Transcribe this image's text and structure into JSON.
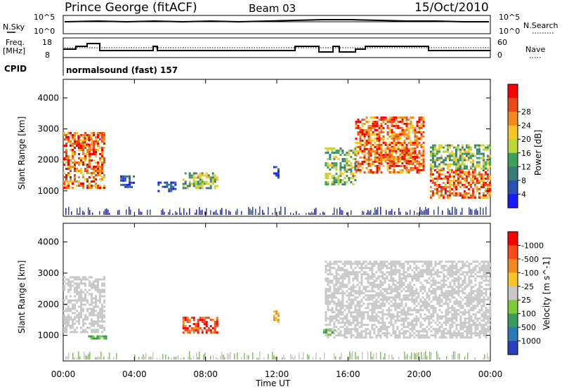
{
  "header": {
    "station": "Prince George (fitACF)",
    "beam": "Beam 03",
    "date": "15/Oct/2010"
  },
  "panels": {
    "nsky_label": "N.Sky",
    "nsearch_label": "N.Search",
    "freq_label_line1": "Freq.",
    "freq_label_line2": "[MHz]",
    "nave_label": "Nave",
    "cpid_label": "CPID",
    "cpid_value": "normalsound (fast) 157",
    "noise_ticks": [
      "10^5",
      "10^0"
    ],
    "freq_ticks": [
      "18",
      "8"
    ],
    "nave_ticks": [
      "60",
      "0"
    ]
  },
  "chart_data": [
    {
      "type": "heatmap",
      "title": "",
      "xlabel": "Time UT",
      "ylabel": "Slant Range [km]",
      "x_ticks": [
        "00:00",
        "04:00",
        "08:00",
        "12:00",
        "16:00",
        "20:00",
        "00:00"
      ],
      "y_ticks": [
        1000,
        2000,
        3000,
        4000
      ],
      "xlim_hours": [
        0,
        24
      ],
      "ylim_km": [
        180,
        4600
      ],
      "colorbar": {
        "label": "Power [dB]",
        "ticks": [
          4,
          8,
          12,
          16,
          20,
          24,
          28
        ],
        "colors": [
          "#1a1aff",
          "#2a4fb5",
          "#3a7a7a",
          "#3aa05a",
          "#b9d63a",
          "#f5c52a",
          "#f08a1e",
          "#e84a1a",
          "#ff0000"
        ]
      },
      "echo_regions": [
        {
          "t0": 0.0,
          "t1": 2.3,
          "r0": 1100,
          "r1": 2900,
          "level": "high"
        },
        {
          "t0": 0.8,
          "t1": 1.6,
          "r0": 2500,
          "r1": 2800,
          "level": "high"
        },
        {
          "t0": 3.2,
          "t1": 4.0,
          "r0": 1100,
          "r1": 1500,
          "level": "low"
        },
        {
          "t0": 5.3,
          "t1": 6.3,
          "r0": 1000,
          "r1": 1300,
          "level": "low"
        },
        {
          "t0": 6.7,
          "t1": 8.6,
          "r0": 1100,
          "r1": 1600,
          "level": "mid"
        },
        {
          "t0": 11.8,
          "t1": 12.1,
          "r0": 1400,
          "r1": 1800,
          "level": "low"
        },
        {
          "t0": 14.7,
          "t1": 16.4,
          "r0": 1200,
          "r1": 2400,
          "level": "mid"
        },
        {
          "t0": 16.4,
          "t1": 20.3,
          "r0": 1600,
          "r1": 3400,
          "level": "high"
        },
        {
          "t0": 17.7,
          "t1": 19.9,
          "r0": 1900,
          "r1": 2400,
          "level": "high"
        },
        {
          "t0": 20.6,
          "t1": 24.0,
          "r0": 800,
          "r1": 1700,
          "level": "high"
        },
        {
          "t0": 20.6,
          "t1": 24.0,
          "r0": 1700,
          "r1": 2500,
          "level": "mid"
        }
      ]
    },
    {
      "type": "heatmap",
      "title": "",
      "xlabel": "Time UT",
      "ylabel": "Slant Range [km]",
      "x_ticks": [
        "00:00",
        "04:00",
        "08:00",
        "12:00",
        "16:00",
        "20:00",
        "00:00"
      ],
      "y_ticks": [
        1000,
        2000,
        3000,
        4000
      ],
      "xlim_hours": [
        0,
        24
      ],
      "ylim_km": [
        180,
        4600
      ],
      "colorbar": {
        "label": "Velocity [m s^-1]",
        "ticks": [
          "1000",
          "500",
          "100",
          "25",
          "-25",
          "-100",
          "-500",
          "-1000"
        ],
        "colors": [
          "#2a3fbf",
          "#2a7ab5",
          "#3a9a5a",
          "#7ecb3a",
          "#c8c8c8",
          "#f5c52a",
          "#f08a1e",
          "#ff4a1a",
          "#ff0000"
        ]
      },
      "echo_regions": [
        {
          "t0": 0.0,
          "t1": 2.3,
          "r0": 1100,
          "r1": 2900,
          "level": "ground"
        },
        {
          "t0": 6.7,
          "t1": 8.6,
          "r0": 1100,
          "r1": 1600,
          "level": "neg_high"
        },
        {
          "t0": 11.8,
          "t1": 12.1,
          "r0": 1400,
          "r1": 1800,
          "level": "neg_mid"
        },
        {
          "t0": 14.7,
          "t1": 24.0,
          "r0": 900,
          "r1": 3400,
          "level": "ground"
        },
        {
          "t0": 14.6,
          "t1": 15.2,
          "r0": 1000,
          "r1": 1200,
          "level": "pos_low"
        },
        {
          "t0": 1.4,
          "t1": 2.4,
          "r0": 900,
          "r1": 1000,
          "level": "pos_low"
        }
      ]
    }
  ]
}
